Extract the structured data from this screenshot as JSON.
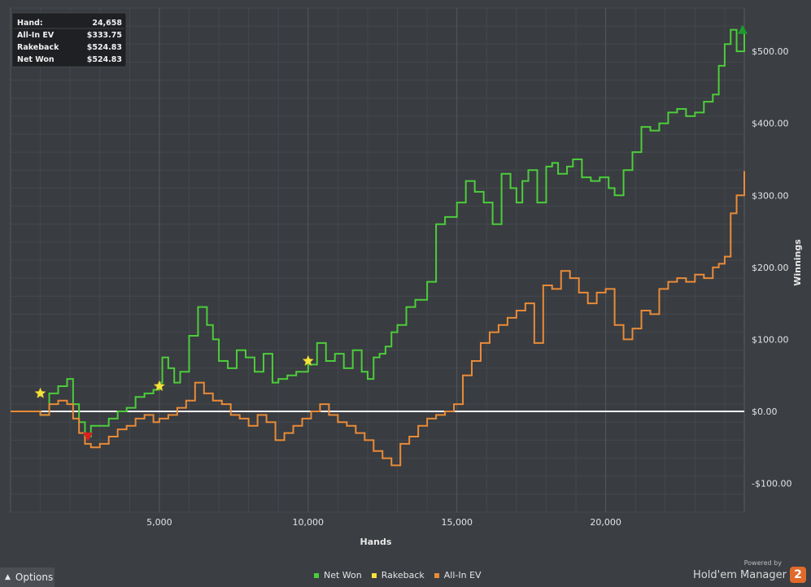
{
  "summary": [
    {
      "label": "Hand:",
      "value": "24,658"
    },
    {
      "label": "All-In EV",
      "value": "$333.75"
    },
    {
      "label": "Rakeback",
      "value": "$524.83"
    },
    {
      "label": "Net Won",
      "value": "$524.83"
    }
  ],
  "legend": [
    {
      "label": "Net Won",
      "color": "#4ccd3a"
    },
    {
      "label": "Rakeback",
      "color": "#f4e23e"
    },
    {
      "label": "All-In EV",
      "color": "#e98b37"
    }
  ],
  "options_label": "Options",
  "brand": {
    "powered_by": "Powered by",
    "name": "Hold'em Manager",
    "logo_text": "2"
  },
  "chart_data": {
    "type": "line",
    "xlabel": "Hands",
    "ylabel": "Winnings",
    "xlim": [
      0,
      24658
    ],
    "ylim": [
      -140,
      560
    ],
    "x_ticks": [
      5000,
      10000,
      15000,
      20000
    ],
    "x_tick_labels": [
      "5,000",
      "10,000",
      "15,000",
      "20,000"
    ],
    "y_ticks": [
      -100,
      0,
      100,
      200,
      300,
      400,
      500
    ],
    "y_tick_labels": [
      "-$100.00",
      "$0.00",
      "$100.00",
      "$200.00",
      "$300.00",
      "$400.00",
      "$500.00"
    ],
    "grid": true,
    "legend_position": "bottom-center",
    "series": [
      {
        "name": "Net Won",
        "color": "#4ccd3a",
        "x": [
          0,
          600,
          1000,
          1300,
          1600,
          1900,
          2100,
          2300,
          2500,
          2700,
          3000,
          3300,
          3600,
          3900,
          4200,
          4500,
          4800,
          5000,
          5100,
          5300,
          5500,
          5700,
          6000,
          6300,
          6600,
          6800,
          7000,
          7300,
          7600,
          7900,
          8200,
          8500,
          8800,
          9000,
          9300,
          9600,
          10000,
          10300,
          10600,
          10900,
          11200,
          11500,
          11800,
          12000,
          12200,
          12400,
          12600,
          12800,
          13000,
          13300,
          13600,
          14000,
          14300,
          14600,
          15000,
          15300,
          15600,
          15900,
          16200,
          16500,
          16800,
          17000,
          17200,
          17400,
          17700,
          18000,
          18200,
          18400,
          18700,
          18900,
          19200,
          19500,
          19800,
          20100,
          20300,
          20600,
          20900,
          21200,
          21500,
          21800,
          22100,
          22400,
          22700,
          23000,
          23300,
          23600,
          23800,
          24000,
          24200,
          24400,
          24658
        ],
        "y": [
          0,
          0,
          -5,
          25,
          35,
          45,
          10,
          -15,
          -35,
          -20,
          -20,
          -10,
          0,
          5,
          20,
          25,
          30,
          40,
          75,
          60,
          40,
          55,
          105,
          145,
          120,
          100,
          70,
          60,
          85,
          75,
          55,
          80,
          40,
          45,
          50,
          55,
          65,
          95,
          70,
          80,
          60,
          85,
          55,
          45,
          75,
          80,
          90,
          110,
          120,
          145,
          155,
          180,
          260,
          270,
          290,
          320,
          305,
          290,
          260,
          330,
          310,
          290,
          320,
          335,
          290,
          340,
          345,
          330,
          340,
          350,
          325,
          320,
          325,
          310,
          300,
          335,
          360,
          395,
          390,
          400,
          415,
          420,
          410,
          415,
          430,
          440,
          480,
          510,
          530,
          500,
          530
        ]
      },
      {
        "name": "All-In EV",
        "color": "#e98b37",
        "x": [
          0,
          600,
          1000,
          1300,
          1600,
          1900,
          2100,
          2300,
          2500,
          2700,
          3000,
          3300,
          3600,
          3900,
          4200,
          4500,
          4800,
          5000,
          5300,
          5600,
          5900,
          6200,
          6500,
          6800,
          7100,
          7400,
          7700,
          8000,
          8300,
          8600,
          8900,
          9200,
          9500,
          9800,
          10100,
          10400,
          10700,
          11000,
          11300,
          11600,
          11900,
          12200,
          12500,
          12800,
          13100,
          13400,
          13700,
          14000,
          14300,
          14600,
          14900,
          15200,
          15500,
          15800,
          16100,
          16400,
          16700,
          17000,
          17300,
          17600,
          17900,
          18200,
          18500,
          18800,
          19100,
          19400,
          19700,
          20000,
          20300,
          20600,
          20900,
          21200,
          21500,
          21800,
          22100,
          22400,
          22700,
          23000,
          23300,
          23600,
          23800,
          24000,
          24200,
          24400,
          24658
        ],
        "y": [
          0,
          0,
          -5,
          10,
          15,
          10,
          -10,
          -30,
          -45,
          -50,
          -45,
          -35,
          -25,
          -20,
          -10,
          -5,
          -15,
          -10,
          -5,
          5,
          15,
          40,
          25,
          15,
          10,
          -5,
          -10,
          -20,
          -5,
          -15,
          -40,
          -30,
          -20,
          -10,
          0,
          10,
          -5,
          -15,
          -20,
          -30,
          -40,
          -55,
          -65,
          -75,
          -45,
          -35,
          -20,
          -10,
          -5,
          0,
          10,
          50,
          70,
          95,
          110,
          120,
          130,
          140,
          150,
          95,
          175,
          170,
          195,
          185,
          165,
          150,
          165,
          170,
          120,
          100,
          115,
          140,
          135,
          170,
          180,
          185,
          180,
          190,
          185,
          200,
          205,
          215,
          275,
          300,
          333.75
        ]
      }
    ],
    "markers": [
      {
        "type": "rakeback-star",
        "x": 1000,
        "y": 25,
        "color": "#f4e23e"
      },
      {
        "type": "rakeback-star",
        "x": 5000,
        "y": 35,
        "color": "#f4e23e"
      },
      {
        "type": "rakeback-star",
        "x": 10000,
        "y": 70,
        "color": "#f4e23e"
      },
      {
        "type": "low-point",
        "x": 2600,
        "y": -35,
        "color": "#d92020"
      },
      {
        "type": "high-point",
        "x": 24600,
        "y": 530,
        "color": "#1e9a2e"
      }
    ]
  }
}
